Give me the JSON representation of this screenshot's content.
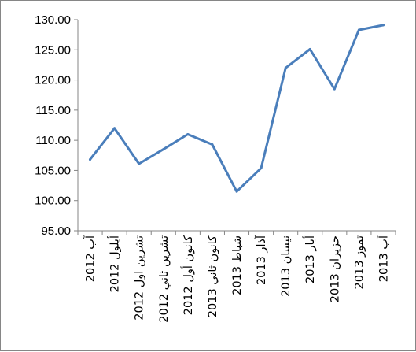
{
  "chart_data": {
    "type": "line",
    "title": "",
    "xlabel": "",
    "ylabel": "",
    "ylim": [
      95,
      130
    ],
    "ytick_step": 5,
    "ytick_labels": [
      "95.00",
      "100.00",
      "105.00",
      "110.00",
      "115.00",
      "120.00",
      "125.00",
      "130.00"
    ],
    "categories": [
      "آب 2012",
      "أيلول 2012",
      "تشرين اول 2012",
      "تشرين ثاني 2012",
      "كانون أول 2012",
      "كانون ثاني 2013",
      "شباط 2013",
      "آذار 2013",
      "نيسان 2013",
      "أيار 2013",
      "حزيران 2013",
      "تموز 2013",
      "آب 2013"
    ],
    "series": [
      {
        "color": "#4a7ebb",
        "values": [
          106.8,
          112.0,
          106.1,
          108.5,
          111.0,
          109.3,
          101.5,
          105.4,
          122.0,
          125.1,
          118.5,
          128.3,
          129.1
        ]
      }
    ],
    "grid": false,
    "legend": "none"
  }
}
